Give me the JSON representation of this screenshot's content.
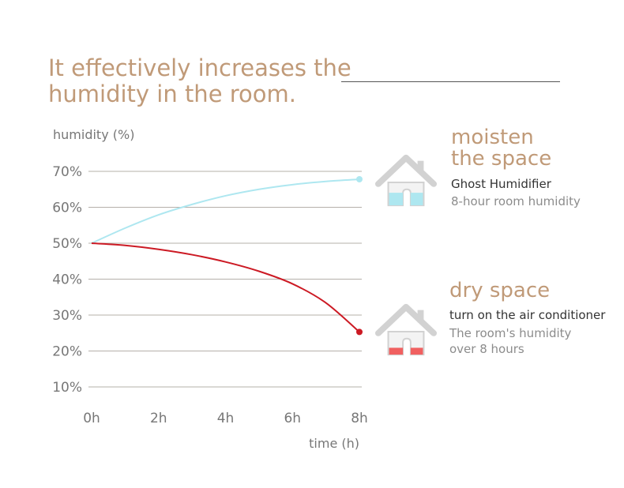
{
  "header": {
    "headline_line1": "It effectively increases the",
    "headline_line2": "humidity in the room."
  },
  "chart_data": {
    "type": "line",
    "ylabel": "humidity (%)",
    "xlabel": "time (h)",
    "x": [
      0,
      1,
      2,
      3,
      4,
      5,
      6,
      7,
      8
    ],
    "x_tick_labels": [
      "0h",
      "2h",
      "4h",
      "6h",
      "8h"
    ],
    "x_ticks": [
      0,
      2,
      4,
      6,
      8
    ],
    "y_tick_labels": [
      "10%",
      "20%",
      "30%",
      "40%",
      "50%",
      "60%",
      "70%"
    ],
    "y_ticks": [
      10,
      20,
      30,
      40,
      50,
      60,
      70
    ],
    "xlim": [
      0,
      8
    ],
    "ylim": [
      10,
      70
    ],
    "grid": true,
    "series": [
      {
        "name": "Ghost Humidifier",
        "color": "#aee7f0",
        "values": [
          50,
          54.2,
          57.9,
          60.8,
          63.2,
          65.0,
          66.3,
          67.2,
          67.8
        ]
      },
      {
        "name": "turn on the air conditioner",
        "color": "#cc1a24",
        "values": [
          50,
          49.4,
          48.3,
          46.8,
          44.8,
          42.2,
          38.7,
          33.4,
          25.3
        ]
      }
    ]
  },
  "legend": {
    "moisten": {
      "title_line1": "moisten",
      "title_line2": "the space",
      "subtitle": "Ghost Humidifier",
      "note": "8-hour room humidity",
      "house_roof_color": "#d2d2d2",
      "house_fill_color": "#aee7f0",
      "house_fill_level": 0.55
    },
    "dry": {
      "title": "dry space",
      "subtitle": "turn on the air conditioner",
      "note_line1": "The room's humidity",
      "note_line2": "over 8 hours",
      "house_roof_color": "#d2d2d2",
      "house_fill_color": "#f06060",
      "house_fill_level": 0.3
    }
  }
}
